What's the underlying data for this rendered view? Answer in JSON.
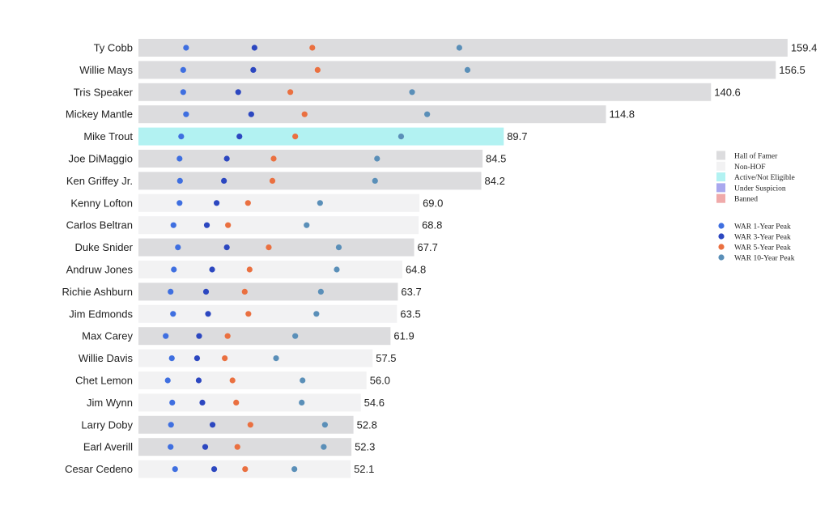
{
  "chart_data": {
    "type": "bar",
    "x_max": 165,
    "category_colors": {
      "Hall of Famer": "#dcdcde",
      "Non-HOF": "#f2f2f3",
      "Active/Not Eligible": "#b2f2f2",
      "Under Suspicion": "#a9a8ee",
      "Banned": "#f0aaaa"
    },
    "series_colors": {
      "WAR 1-Year Peak": "#3f6fe0",
      "WAR 3-Year Peak": "#2c47c0",
      "WAR 5-Year Peak": "#ea7040",
      "WAR 10-Year Peak": "#5a8fb8"
    },
    "legend_categories": [
      "Hall of Famer",
      "Non-HOF",
      "Active/Not Eligible",
      "Under Suspicion",
      "Banned"
    ],
    "legend_series": [
      "WAR 1-Year Peak",
      "WAR 3-Year Peak",
      "WAR 5-Year Peak",
      "WAR 10-Year Peak"
    ],
    "players": [
      {
        "name": "Ty Cobb",
        "total": "159.4",
        "status": "Hall of Famer",
        "peaks": [
          11.7,
          28.5,
          42.7,
          78.8
        ]
      },
      {
        "name": "Willie Mays",
        "total": "156.5",
        "status": "Hall of Famer",
        "peaks": [
          11.0,
          28.2,
          44.0,
          80.8
        ]
      },
      {
        "name": "Tris Speaker",
        "total": "140.6",
        "status": "Hall of Famer",
        "peaks": [
          11.0,
          24.5,
          37.3,
          67.2
        ]
      },
      {
        "name": "Mickey Mantle",
        "total": "114.8",
        "status": "Hall of Famer",
        "peaks": [
          11.7,
          27.7,
          40.8,
          70.9
        ]
      },
      {
        "name": "Mike Trout",
        "total": "89.7",
        "status": "Active/Not Eligible",
        "peaks": [
          10.5,
          24.8,
          38.5,
          64.5
        ]
      },
      {
        "name": "Joe DiMaggio",
        "total": "84.5",
        "status": "Hall of Famer",
        "peaks": [
          10.1,
          21.7,
          33.2,
          58.6
        ]
      },
      {
        "name": "Ken Griffey Jr.",
        "total": "84.2",
        "status": "Hall of Famer",
        "peaks": [
          10.2,
          21.0,
          32.9,
          58.1
        ]
      },
      {
        "name": "Kenny Lofton",
        "total": "69.0",
        "status": "Non-HOF",
        "peaks": [
          10.1,
          19.2,
          26.9,
          44.6
        ]
      },
      {
        "name": "Carlos Beltran",
        "total": "68.8",
        "status": "Non-HOF",
        "peaks": [
          8.6,
          16.8,
          22.0,
          41.3
        ]
      },
      {
        "name": "Duke Snider",
        "total": "67.7",
        "status": "Hall of Famer",
        "peaks": [
          9.7,
          21.7,
          32.0,
          49.2
        ]
      },
      {
        "name": "Andruw Jones",
        "total": "64.8",
        "status": "Non-HOF",
        "peaks": [
          8.7,
          18.1,
          27.3,
          48.7
        ]
      },
      {
        "name": "Richie Ashburn",
        "total": "63.7",
        "status": "Hall of Famer",
        "peaks": [
          7.9,
          16.6,
          26.1,
          44.8
        ]
      },
      {
        "name": "Jim Edmonds",
        "total": "63.5",
        "status": "Non-HOF",
        "peaks": [
          8.5,
          17.1,
          27.0,
          43.7
        ]
      },
      {
        "name": "Max Carey",
        "total": "61.9",
        "status": "Hall of Famer",
        "peaks": [
          6.7,
          14.9,
          21.9,
          38.5
        ]
      },
      {
        "name": "Willie Davis",
        "total": "57.5",
        "status": "Non-HOF",
        "peaks": [
          8.2,
          14.4,
          21.2,
          33.8
        ]
      },
      {
        "name": "Chet Lemon",
        "total": "56.0",
        "status": "Non-HOF",
        "peaks": [
          7.2,
          14.8,
          23.1,
          40.3
        ]
      },
      {
        "name": "Jim Wynn",
        "total": "54.6",
        "status": "Non-HOF",
        "peaks": [
          8.3,
          15.7,
          24.0,
          40.1
        ]
      },
      {
        "name": "Larry Doby",
        "total": "52.8",
        "status": "Hall of Famer",
        "peaks": [
          8.0,
          18.2,
          27.5,
          45.8
        ]
      },
      {
        "name": "Earl Averill",
        "total": "52.3",
        "status": "Hall of Famer",
        "peaks": [
          7.9,
          16.4,
          24.3,
          45.5
        ]
      },
      {
        "name": "Cesar Cedeno",
        "total": "52.1",
        "status": "Non-HOF",
        "peaks": [
          9.0,
          18.6,
          26.2,
          38.3
        ]
      }
    ]
  }
}
